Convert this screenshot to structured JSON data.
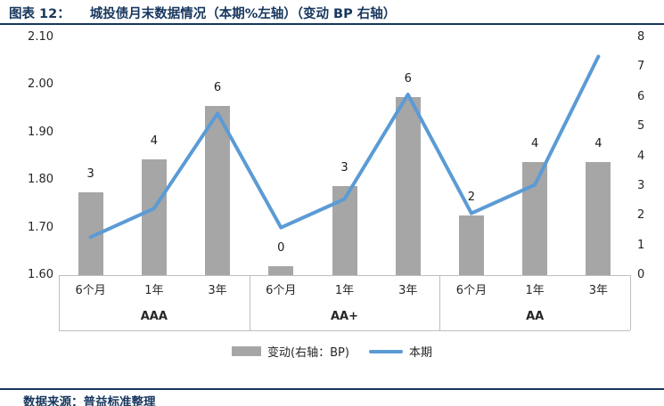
{
  "header": {
    "prefix": "图表 12：",
    "title": "城投债月末数据情况（本期%左轴）（变动 BP 右轴）"
  },
  "footer": {
    "text": "数据来源：普益标准整理"
  },
  "colors": {
    "accent_navy": "#17375E",
    "bar_gray": "#A6A6A6",
    "line_blue": "#5B9BD5",
    "axis_gray": "#BFBFBF"
  },
  "chart_data": {
    "type": "bar",
    "subtype": "bar+line combo, dual axis",
    "categories": [
      "6个月",
      "1年",
      "3年",
      "6个月",
      "1年",
      "3年",
      "6个月",
      "1年",
      "3年"
    ],
    "group_labels": [
      "AAA",
      "AA+",
      "AA"
    ],
    "series": [
      {
        "name": "变动(右轴：BP)",
        "type": "bar",
        "axis": "right",
        "color": "#A6A6A6",
        "data_labels": [
          "3",
          "4",
          "6",
          "0",
          "3",
          "6",
          "2",
          "4",
          "4"
        ],
        "values": [
          2.8,
          3.9,
          5.7,
          0.3,
          3.0,
          6.0,
          2.0,
          3.8,
          3.8
        ]
      },
      {
        "name": "本期",
        "type": "line",
        "axis": "left",
        "color": "#5B9BD5",
        "values": [
          1.68,
          1.74,
          1.94,
          1.7,
          1.76,
          1.98,
          1.73,
          1.79,
          2.06
        ]
      }
    ],
    "left_axis": {
      "min": 1.6,
      "max": 2.1,
      "ticks": [
        "2.10",
        "2.00",
        "1.90",
        "1.80",
        "1.70",
        "1.60"
      ]
    },
    "right_axis": {
      "min": 0,
      "max": 8,
      "ticks": [
        "8",
        "7",
        "6",
        "5",
        "4",
        "3",
        "2",
        "1",
        "0"
      ]
    },
    "grid": false,
    "legend_position": "bottom"
  }
}
